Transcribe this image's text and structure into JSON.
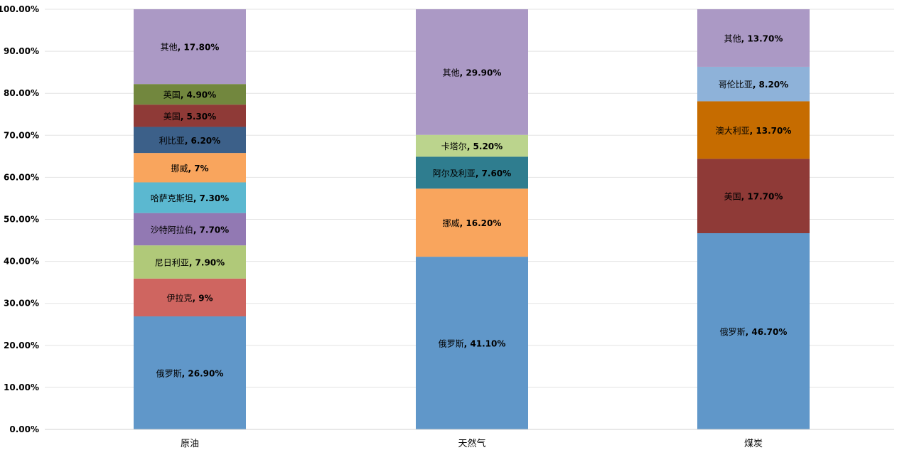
{
  "chart_data": {
    "type": "bar",
    "stacked": true,
    "ylim": [
      0,
      100
    ],
    "yticks": [
      "0.00%",
      "10.00%",
      "20.00%",
      "30.00%",
      "40.00%",
      "50.00%",
      "60.00%",
      "70.00%",
      "80.00%",
      "90.00%",
      "100.00%"
    ],
    "categories": [
      "原油",
      "天然气",
      "煤炭"
    ],
    "stacks": [
      {
        "category": "原油",
        "segments": [
          {
            "name": "俄罗斯",
            "value": 26.9,
            "label": "26.90%",
            "color": "#6097c9"
          },
          {
            "name": "伊拉克",
            "value": 9,
            "label": "9%",
            "color": "#cf6560"
          },
          {
            "name": "尼日利亚",
            "value": 7.9,
            "label": "7.90%",
            "color": "#b0c979"
          },
          {
            "name": "沙特阿拉伯",
            "value": 7.7,
            "label": "7.70%",
            "color": "#9279b3"
          },
          {
            "name": "哈萨克斯坦",
            "value": 7.3,
            "label": "7.30%",
            "color": "#5bb8d0"
          },
          {
            "name": "挪威",
            "value": 7,
            "label": "7%",
            "color": "#f9a55d"
          },
          {
            "name": "利比亚",
            "value": 6.2,
            "label": "6.20%",
            "color": "#3c6089"
          },
          {
            "name": "美国",
            "value": 5.3,
            "label": "5.30%",
            "color": "#8f3a37"
          },
          {
            "name": "英国",
            "value": 4.9,
            "label": "4.90%",
            "color": "#72873e"
          },
          {
            "name": "其他",
            "value": 17.8,
            "label": "17.80%",
            "color": "#ab99c5"
          }
        ]
      },
      {
        "category": "天然气",
        "segments": [
          {
            "name": "俄罗斯",
            "value": 41.1,
            "label": "41.10%",
            "color": "#6097c9"
          },
          {
            "name": "挪威",
            "value": 16.2,
            "label": "16.20%",
            "color": "#f9a55d"
          },
          {
            "name": "阿尔及利亚",
            "value": 7.6,
            "label": "7.60%",
            "color": "#2f7d8f"
          },
          {
            "name": "卡塔尔",
            "value": 5.2,
            "label": "5.20%",
            "color": "#bbd48d"
          },
          {
            "name": "其他",
            "value": 29.9,
            "label": "29.90%",
            "color": "#ab99c5"
          }
        ]
      },
      {
        "category": "煤炭",
        "segments": [
          {
            "name": "俄罗斯",
            "value": 46.7,
            "label": "46.70%",
            "color": "#6097c9"
          },
          {
            "name": "美国",
            "value": 17.7,
            "label": "17.70%",
            "color": "#8f3a37"
          },
          {
            "name": "澳大利亚",
            "value": 13.7,
            "label": "13.70%",
            "color": "#c66c00"
          },
          {
            "name": "哥伦比亚",
            "value": 8.2,
            "label": "8.20%",
            "color": "#8eb2d9"
          },
          {
            "name": "其他",
            "value": 13.7,
            "label": "13.70%",
            "color": "#ab99c5"
          }
        ]
      }
    ]
  }
}
